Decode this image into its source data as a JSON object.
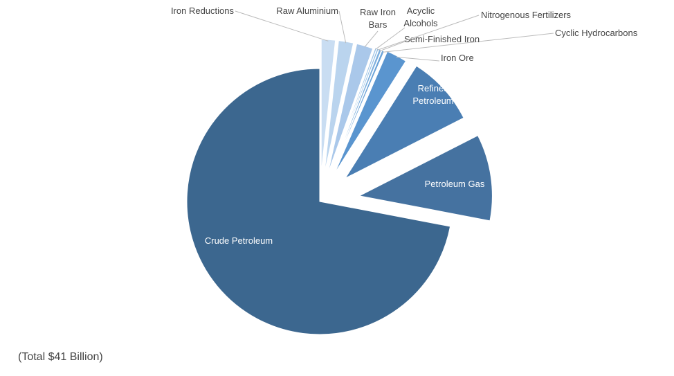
{
  "chart_data": {
    "type": "pie",
    "title": "",
    "total_note": "(Total $41 Billion)",
    "slices": [
      {
        "label": "Crude Petroleum",
        "value": 72.0,
        "color": "#3c678f",
        "label_lines": [
          "Crude Petroleum"
        ]
      },
      {
        "label": "Petroleum Gas",
        "value": 10.5,
        "color": "#4572a0",
        "label_lines": [
          "Petroleum Gas"
        ]
      },
      {
        "label": "Refined Petroleum",
        "value": 8.5,
        "color": "#4a7eb3",
        "label_lines": [
          "Refined",
          "Petroleum"
        ]
      },
      {
        "label": "Iron Ore",
        "value": 2.5,
        "color": "#5a95cf",
        "label_lines": [
          "Iron Ore"
        ]
      },
      {
        "label": "Cyclic Hydrocarbons",
        "value": 0.3,
        "color": "#6ba3d8",
        "label_lines": [
          "Cyclic Hydrocarbons"
        ]
      },
      {
        "label": "Semi-Finished Iron",
        "value": 0.3,
        "color": "#7eb0de",
        "label_lines": [
          "Semi-Finished Iron"
        ]
      },
      {
        "label": "Nitrogenous Fertilizers",
        "value": 0.2,
        "color": "#8fbce3",
        "label_lines": [
          "Nitrogenous Fertilizers"
        ]
      },
      {
        "label": "Acyclic Alcohols",
        "value": 0.2,
        "color": "#9cc3e6",
        "label_lines": [
          "Acyclic",
          "Alcohols"
        ]
      },
      {
        "label": "Raw Iron Bars",
        "value": 2.0,
        "color": "#aac8ea",
        "label_lines": [
          "Raw Iron",
          "Bars"
        ]
      },
      {
        "label": "Raw Aluminium",
        "value": 1.8,
        "color": "#bad4ee",
        "label_lines": [
          "Raw Aluminium"
        ]
      },
      {
        "label": "Iron Reductions",
        "value": 1.7,
        "color": "#c9ddf2",
        "label_lines": [
          "Iron Reductions"
        ]
      }
    ]
  }
}
